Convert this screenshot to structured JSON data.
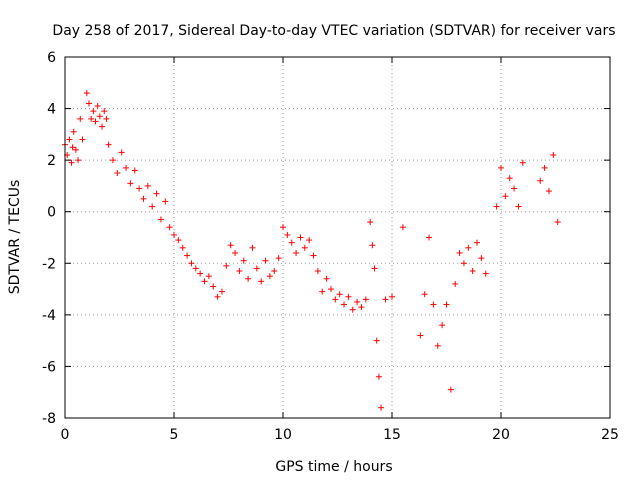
{
  "chart_data": {
    "type": "scatter",
    "title": "Day 258 of 2017, Sidereal Day-to-day VTEC variation (SDTVAR) for receiver vars",
    "xlabel": "GPS time / hours",
    "ylabel": "SDTVAR / TECUs",
    "xlim": [
      0,
      25
    ],
    "ylim": [
      -8,
      6
    ],
    "xticks": [
      0,
      5,
      10,
      15,
      20,
      25
    ],
    "yticks": [
      -8,
      -6,
      -4,
      -2,
      0,
      2,
      4,
      6
    ],
    "grid": true,
    "marker": "+",
    "series": [
      {
        "name": "SDTVAR",
        "color": "#ff0000",
        "x": [
          0.0,
          0.1,
          0.2,
          0.3,
          0.35,
          0.4,
          0.5,
          0.6,
          0.7,
          0.8,
          1.0,
          1.1,
          1.2,
          1.3,
          1.4,
          1.5,
          1.6,
          1.7,
          1.8,
          1.9,
          2.0,
          2.2,
          2.4,
          2.6,
          2.8,
          3.0,
          3.2,
          3.4,
          3.6,
          3.8,
          4.0,
          4.2,
          4.4,
          4.6,
          4.8,
          5.0,
          5.2,
          5.4,
          5.6,
          5.8,
          6.0,
          6.2,
          6.4,
          6.6,
          6.8,
          7.0,
          7.2,
          7.4,
          7.6,
          7.8,
          8.0,
          8.2,
          8.4,
          8.6,
          8.8,
          9.0,
          9.2,
          9.4,
          9.6,
          9.8,
          10.0,
          10.2,
          10.4,
          10.6,
          10.8,
          11.0,
          11.2,
          11.4,
          11.6,
          11.8,
          12.0,
          12.2,
          12.4,
          12.6,
          12.8,
          13.0,
          13.2,
          13.4,
          13.6,
          13.8,
          14.0,
          14.1,
          14.2,
          14.3,
          14.4,
          14.5,
          14.7,
          15.0,
          15.5,
          16.3,
          16.5,
          16.7,
          16.9,
          17.1,
          17.3,
          17.5,
          17.7,
          17.9,
          18.1,
          18.3,
          18.5,
          18.7,
          18.9,
          19.1,
          19.3,
          19.8,
          20.0,
          20.2,
          20.4,
          20.6,
          20.8,
          21.0,
          21.8,
          22.0,
          22.2,
          22.4,
          22.6
        ],
        "y": [
          2.6,
          2.2,
          2.8,
          1.9,
          2.5,
          3.1,
          2.4,
          2.0,
          3.6,
          2.8,
          4.6,
          4.2,
          3.6,
          3.9,
          3.5,
          4.1,
          3.7,
          3.3,
          3.9,
          3.6,
          2.6,
          2.0,
          1.5,
          2.3,
          1.7,
          1.1,
          1.6,
          0.9,
          0.5,
          1.0,
          0.2,
          0.7,
          -0.3,
          0.4,
          -0.6,
          -0.9,
          -1.1,
          -1.4,
          -1.7,
          -2.0,
          -2.2,
          -2.4,
          -2.7,
          -2.5,
          -2.9,
          -3.3,
          -3.1,
          -2.1,
          -1.3,
          -1.6,
          -2.3,
          -1.9,
          -2.6,
          -1.4,
          -2.2,
          -2.7,
          -1.9,
          -2.5,
          -2.3,
          -1.8,
          -0.6,
          -0.9,
          -1.2,
          -1.6,
          -1.0,
          -1.4,
          -1.1,
          -1.7,
          -2.3,
          -3.1,
          -2.6,
          -3.0,
          -3.4,
          -3.2,
          -3.6,
          -3.3,
          -3.8,
          -3.5,
          -3.7,
          -3.4,
          -0.4,
          -1.3,
          -2.2,
          -5.0,
          -6.4,
          -7.6,
          -3.4,
          -3.3,
          -0.6,
          -4.8,
          -3.2,
          -1.0,
          -3.6,
          -5.2,
          -4.4,
          -3.6,
          -6.9,
          -2.8,
          -1.6,
          -2.0,
          -1.4,
          -2.3,
          -1.2,
          -1.8,
          -2.4,
          0.2,
          1.7,
          0.6,
          1.3,
          0.9,
          0.2,
          1.9,
          1.2,
          1.7,
          0.8,
          2.2,
          -0.4
        ]
      }
    ]
  }
}
